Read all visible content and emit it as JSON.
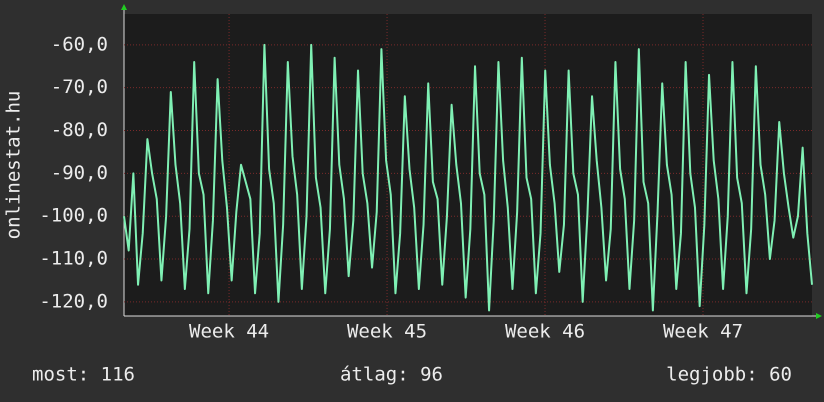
{
  "chart_data": {
    "type": "line",
    "ylabel": "onlinestat.hu",
    "color": "#7ff0b4",
    "values": [
      -100,
      -108,
      -90,
      -116,
      -104,
      -82,
      -90,
      -96,
      -115,
      -100,
      -71,
      -88,
      -97,
      -117,
      -103,
      -64,
      -90,
      -95,
      -118,
      -101,
      -68,
      -87,
      -98,
      -115,
      -99,
      -88,
      -92,
      -96,
      -118,
      -104,
      -60,
      -89,
      -97,
      -120,
      -102,
      -64,
      -86,
      -95,
      -117,
      -100,
      -60,
      -91,
      -98,
      -118,
      -103,
      -63,
      -88,
      -96,
      -114,
      -101,
      -66,
      -90,
      -97,
      -112,
      -99,
      -61,
      -87,
      -95,
      -118,
      -104,
      -72,
      -89,
      -98,
      -117,
      -102,
      -69,
      -92,
      -96,
      -116,
      -100,
      -74,
      -88,
      -97,
      -119,
      -103,
      -65,
      -90,
      -95,
      -122,
      -101,
      -64,
      -87,
      -98,
      -117,
      -99,
      -63,
      -91,
      -96,
      -118,
      -104,
      -66,
      -88,
      -97,
      -113,
      -102,
      -66,
      -90,
      -95,
      -120,
      -100,
      -72,
      -87,
      -98,
      -115,
      -103,
      -64,
      -89,
      -96,
      -117,
      -101,
      -61,
      -92,
      -97,
      -122,
      -99,
      -69,
      -88,
      -95,
      -117,
      -104,
      -64,
      -90,
      -98,
      -121,
      -102,
      -67,
      -87,
      -96,
      -117,
      -100,
      -64,
      -91,
      -97,
      -118,
      -103,
      -65,
      -88,
      -95,
      -110,
      -101,
      -78,
      -90,
      -98,
      -105,
      -100,
      -84,
      -104,
      -116
    ],
    "ylim": [
      -123.3,
      -52.8
    ],
    "yticks": [
      {
        "value": -60,
        "label": "-60,0"
      },
      {
        "value": -70,
        "label": "-70,0"
      },
      {
        "value": -80,
        "label": "-80,0"
      },
      {
        "value": -90,
        "label": "-90,0"
      },
      {
        "value": -100,
        "label": "-100,0"
      },
      {
        "value": -110,
        "label": "-110,0"
      },
      {
        "value": -120,
        "label": "-120,0"
      }
    ],
    "xlim": [
      43.335,
      47.69
    ],
    "xticks": [
      {
        "value": 44,
        "label": "Week 44"
      },
      {
        "value": 45,
        "label": "Week 45"
      },
      {
        "value": 46,
        "label": "Week 46"
      },
      {
        "value": 47,
        "label": "Week 47"
      }
    ],
    "grid": true,
    "annotations": [
      "most: 116",
      "átlag: 96",
      "legjobb: 60"
    ]
  }
}
